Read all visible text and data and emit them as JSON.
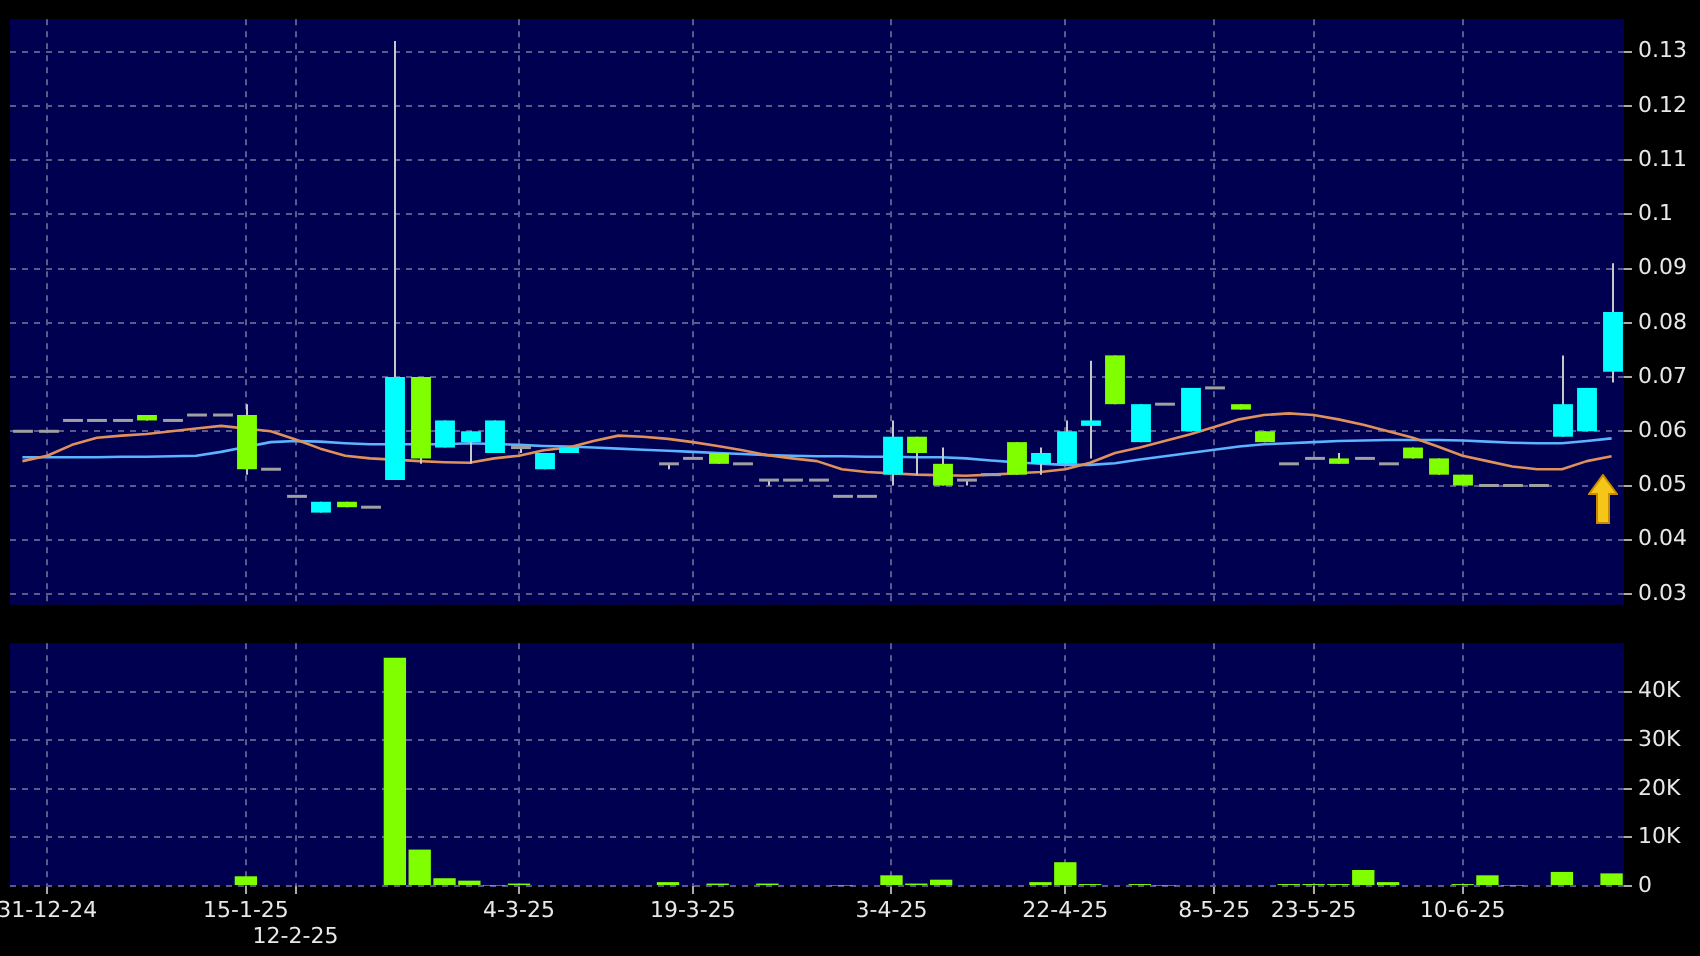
{
  "chart_data": [
    {
      "type": "candlestick",
      "categories": [
        null,
        null,
        null,
        null,
        null,
        null,
        null,
        null,
        null,
        null,
        null,
        null,
        null,
        null,
        null,
        null,
        null,
        null,
        null,
        null,
        null,
        null,
        null,
        null,
        null,
        null,
        null,
        null,
        null,
        null,
        null,
        null,
        null,
        null,
        null,
        null,
        null,
        null,
        null,
        null,
        null,
        null,
        null,
        null,
        null,
        null,
        null,
        null,
        null,
        null,
        null,
        null,
        null,
        null,
        null,
        null,
        null,
        null,
        null,
        null,
        null,
        null,
        null,
        null,
        null
      ],
      "ohlc": [
        [
          0.06,
          0.06,
          0.06,
          0.06
        ],
        [
          0.06,
          0.06,
          0.06,
          0.06
        ],
        [
          0.062,
          0.062,
          0.062,
          0.062
        ],
        [
          0.062,
          0.062,
          0.062,
          0.062
        ],
        [
          0.062,
          0.062,
          0.062,
          0.062
        ],
        [
          0.063,
          0.063,
          0.062,
          0.062
        ],
        [
          0.062,
          0.062,
          0.062,
          0.062
        ],
        [
          0.063,
          0.063,
          0.063,
          0.063
        ],
        [
          0.063,
          0.063,
          0.063,
          0.063
        ],
        [
          0.063,
          0.065,
          0.052,
          0.053
        ],
        [
          0.053,
          0.053,
          0.053,
          0.053
        ],
        [
          0.048,
          0.048,
          0.048,
          0.048
        ],
        [
          0.045,
          0.047,
          0.045,
          0.047
        ],
        [
          0.047,
          0.047,
          0.046,
          0.046
        ],
        [
          0.046,
          0.046,
          0.046,
          0.046
        ],
        [
          0.051,
          0.132,
          0.051,
          0.07
        ],
        [
          0.07,
          0.07,
          0.054,
          0.055
        ],
        [
          0.057,
          0.062,
          0.057,
          0.062
        ],
        [
          0.058,
          0.06,
          0.054,
          0.06
        ],
        [
          0.056,
          0.062,
          0.056,
          0.062
        ],
        [
          0.057,
          0.057,
          0.056,
          0.057
        ],
        [
          0.053,
          0.056,
          0.053,
          0.056
        ],
        [
          0.056,
          0.057,
          0.056,
          0.057
        ],
        null,
        null,
        null,
        [
          0.054,
          0.054,
          0.053,
          0.054
        ],
        [
          0.055,
          0.055,
          0.055,
          0.055
        ],
        [
          0.056,
          0.056,
          0.054,
          0.054
        ],
        [
          0.054,
          0.054,
          0.054,
          0.054
        ],
        [
          0.051,
          0.051,
          0.05,
          0.051
        ],
        [
          0.051,
          0.051,
          0.051,
          0.051
        ],
        [
          0.051,
          0.051,
          0.051,
          0.051
        ],
        [
          0.048,
          0.048,
          0.048,
          0.048
        ],
        [
          0.048,
          0.048,
          0.048,
          0.048
        ],
        [
          0.052,
          0.062,
          0.05,
          0.059
        ],
        [
          0.059,
          0.059,
          0.052,
          0.056
        ],
        [
          0.054,
          0.057,
          0.05,
          0.05
        ],
        [
          0.051,
          0.051,
          0.05,
          0.051
        ],
        [
          0.052,
          0.052,
          0.052,
          0.052
        ],
        [
          0.058,
          0.058,
          0.052,
          0.052
        ],
        [
          0.054,
          0.057,
          0.052,
          0.056
        ],
        [
          0.054,
          0.062,
          0.054,
          0.06
        ],
        [
          0.061,
          0.073,
          0.055,
          0.062
        ],
        [
          0.074,
          0.074,
          0.065,
          0.065
        ],
        [
          0.058,
          0.065,
          0.058,
          0.065
        ],
        [
          0.065,
          0.065,
          0.065,
          0.065
        ],
        [
          0.06,
          0.068,
          0.06,
          0.068
        ],
        [
          0.068,
          0.068,
          0.068,
          0.068
        ],
        [
          0.065,
          0.065,
          0.064,
          0.064
        ],
        [
          0.06,
          0.06,
          0.058,
          0.058
        ],
        [
          0.054,
          0.054,
          0.054,
          0.054
        ],
        [
          0.055,
          0.055,
          0.055,
          0.055
        ],
        [
          0.055,
          0.056,
          0.054,
          0.054
        ],
        [
          0.055,
          0.055,
          0.055,
          0.055
        ],
        [
          0.054,
          0.054,
          0.054,
          0.054
        ],
        [
          0.057,
          0.057,
          0.055,
          0.055
        ],
        [
          0.055,
          0.055,
          0.052,
          0.052
        ],
        [
          0.052,
          0.052,
          0.05,
          0.05
        ],
        [
          0.05,
          0.05,
          0.05,
          0.05
        ],
        [
          0.05,
          0.05,
          0.05,
          0.05
        ],
        [
          0.05,
          0.05,
          0.05,
          0.05
        ],
        [
          0.059,
          0.074,
          0.059,
          0.065
        ],
        [
          0.06,
          0.068,
          0.06,
          0.068
        ],
        [
          0.071,
          0.091,
          0.069,
          0.082
        ]
      ],
      "colors": [
        "#a0a0a0",
        "#a0a0a0",
        "#a0a0a0",
        "#a0a0a0",
        "#a0a0a0",
        "#80ff00",
        "#a0a0a0",
        "#a0a0a0",
        "#a0a0a0",
        "#80ff00",
        "#a0a0a0",
        "#a0a0a0",
        "#00ffff",
        "#80ff00",
        "#a0a0a0",
        "#00ffff",
        "#80ff00",
        "#00ffff",
        "#00ffff",
        "#00ffff",
        "#a0a0a0",
        "#00ffff",
        "#00ffff",
        null,
        null,
        null,
        "#a0a0a0",
        "#a0a0a0",
        "#80ff00",
        "#a0a0a0",
        "#a0a0a0",
        "#a0a0a0",
        "#a0a0a0",
        "#a0a0a0",
        "#a0a0a0",
        "#00ffff",
        "#80ff00",
        "#80ff00",
        "#a0a0a0",
        "#a0a0a0",
        "#80ff00",
        "#00ffff",
        "#00ffff",
        "#00ffff",
        "#80ff00",
        "#00ffff",
        "#a0a0a0",
        "#00ffff",
        "#a0a0a0",
        "#80ff00",
        "#80ff00",
        "#a0a0a0",
        "#a0a0a0",
        "#80ff00",
        "#a0a0a0",
        "#a0a0a0",
        "#80ff00",
        "#80ff00",
        "#80ff00",
        "#a0a0a0",
        "#a0a0a0",
        "#a0a0a0",
        "#00ffff",
        "#00ffff",
        "#00ffff"
      ],
      "series": [
        {
          "type": "line",
          "color": "#e0905a",
          "values": [
            0.0545,
            0.0555,
            0.0575,
            0.0588,
            0.0592,
            0.0595,
            0.06,
            0.0605,
            0.061,
            null,
            0.06,
            0.0585,
            0.0568,
            0.0555,
            0.055,
            null,
            0.0545,
            0.0543,
            0.0542,
            0.055,
            0.0555,
            0.0565,
            0.057,
            0.0582,
            0.0592,
            0.059,
            0.0586,
            0.058,
            0.0573,
            0.0565,
            0.0556,
            0.055,
            0.0545,
            0.053,
            0.0525,
            null,
            0.052,
            null,
            0.0518,
            0.052,
            null,
            0.0525,
            0.053,
            0.0542,
            0.056,
            0.057,
            0.0582,
            0.0594,
            0.0608,
            0.0622,
            0.063,
            0.0633,
            0.063,
            0.0622,
            0.0612,
            0.06,
            0.0588,
            0.0572,
            0.0555,
            0.0545,
            0.0535,
            0.053,
            0.053,
            0.0545,
            0.0554
          ]
        },
        {
          "type": "line",
          "color": "#5ab4ff",
          "values": [
            0.0552,
            0.0552,
            0.0552,
            0.0552,
            0.0553,
            0.0553,
            0.0554,
            0.0555,
            0.0562,
            null,
            0.058,
            0.0582,
            0.0581,
            0.0578,
            0.0576,
            null,
            null,
            0.0576,
            0.0578,
            null,
            0.0575,
            0.0573,
            0.0572,
            0.057,
            0.0568,
            0.0566,
            0.0564,
            0.0562,
            0.056,
            0.0558,
            0.0556,
            0.0555,
            0.0554,
            0.0554,
            0.0553,
            0.0553,
            0.0552,
            0.0552,
            0.055,
            0.0546,
            null,
            0.054,
            0.0538,
            0.0538,
            0.0541,
            0.0548,
            0.0554,
            0.056,
            0.0566,
            0.0572,
            0.0576,
            0.0578,
            0.058,
            0.0582,
            0.0583,
            0.0584,
            0.0584,
            0.0584,
            0.0583,
            0.0581,
            0.0579,
            0.0578,
            0.0578,
            0.0582,
            0.0587
          ]
        }
      ],
      "ylim": [
        0.028,
        0.136
      ],
      "yticks": [
        0.03,
        0.04,
        0.05,
        0.06,
        0.07,
        0.08,
        0.09,
        0.1,
        0.11,
        0.12,
        0.13
      ],
      "grid": true,
      "tick_labels": "y"
    },
    {
      "type": "bar",
      "categories": [
        null,
        "31-12-24",
        null,
        null,
        null,
        null,
        null,
        null,
        null,
        "15-1-25",
        null,
        "12-2-25",
        null,
        null,
        null,
        null,
        null,
        null,
        null,
        null,
        "4-3-25",
        null,
        null,
        null,
        null,
        null,
        null,
        "19-3-25",
        null,
        null,
        null,
        null,
        null,
        null,
        null,
        "3-4-25",
        null,
        null,
        null,
        null,
        null,
        null,
        "22-4-25",
        null,
        null,
        null,
        null,
        null,
        "8-5-25",
        null,
        null,
        null,
        "23-5-25",
        null,
        null,
        null,
        null,
        null,
        "10-6-25",
        null,
        null,
        null,
        null,
        null,
        null
      ],
      "values": [
        null,
        null,
        null,
        null,
        null,
        null,
        null,
        null,
        null,
        2000,
        null,
        null,
        null,
        null,
        null,
        47000,
        7500,
        1600,
        1100,
        100,
        500,
        null,
        null,
        null,
        null,
        null,
        800,
        null,
        500,
        null,
        500,
        null,
        null,
        100,
        null,
        2200,
        500,
        1300,
        null,
        null,
        null,
        800,
        4900,
        400,
        null,
        400,
        100,
        null,
        null,
        null,
        null,
        400,
        400,
        400,
        3300,
        800,
        null,
        null,
        400,
        2200,
        100,
        null,
        2900,
        null,
        2600
      ],
      "color": "#80ff00",
      "ylim": [
        0,
        50000
      ],
      "yticks": [
        {
          "value": 0,
          "label": "0"
        },
        {
          "value": 10000,
          "label": "10K"
        },
        {
          "value": 20000,
          "label": "20K"
        },
        {
          "value": 30000,
          "label": "30K"
        },
        {
          "value": 40000,
          "label": "40K"
        }
      ],
      "grid": true
    }
  ]
}
